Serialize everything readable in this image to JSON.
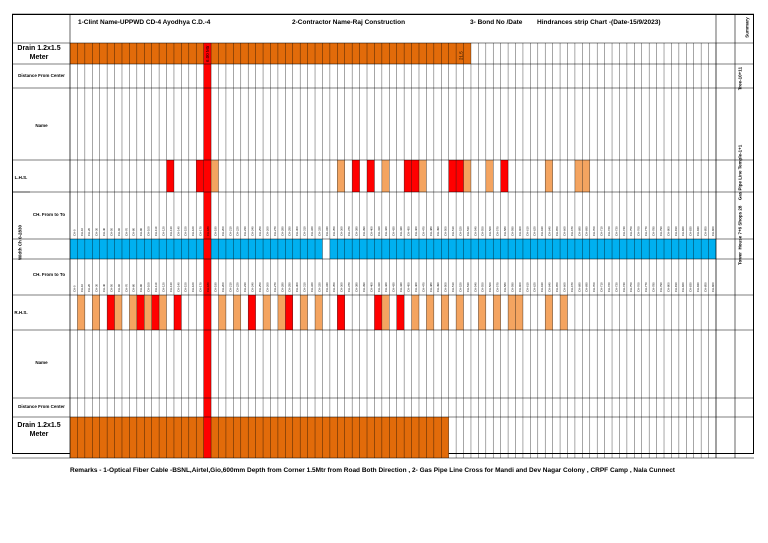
{
  "header": {
    "client": "1-Clint Name-UPPWD CD-4 Ayodhya C.D.-4",
    "contractor": "2-Contractor Name-Raj Construction",
    "bond": "3- Bond No /Date",
    "chart_title": "Hindrances strip Chart -(Date-15/9/2023)",
    "summary": "Summary"
  },
  "rows": {
    "drain_top": "Drain 1.2x1.5 Meter",
    "distance_top": "Distance From Center",
    "name_top": "Name",
    "lhs": "L.H.S.",
    "ch_top": "CH. From to To",
    "ch_bottom": "CH. From to To",
    "rhs": "R.H.S.",
    "name_bottom": "Name",
    "distance_bottom": "Distance From Center",
    "drain_bottom": "Drain 1.2x1.5 Meter",
    "vertical_left": "Width Ch 0-2830"
  },
  "summary_column": [
    "Tree-10+11",
    "Gas Pipe Line Temple-1+1",
    "House 7+6 Shops 28",
    "Tower"
  ],
  "drain_labels": [
    "6.00 Mtr",
    "21.5"
  ],
  "remarks": "Remarks - 1-Optical Fiber Cable -BSNL,Airtel,Gio,600mm Depth from Corner 1.5Mtr from Road Both Direction , 2- Gas Pipe Line Cross for Mandi and Dev Nagar Colony , CRPF Camp , Nala Cunnect",
  "colors": {
    "drain": "#E26B0A",
    "red": "#FF0000",
    "light_orange": "#F4A460",
    "blue": "#00B0F0",
    "border": "#000000"
  },
  "grid": {
    "columns": 87,
    "chainage_step": 10,
    "chainage_start": 0,
    "red_column": 18,
    "blue_gap_column": 34,
    "drain_top_end_column": 53,
    "drain_bottom_end_column": 50
  },
  "markers": {
    "lhs_red": [
      13,
      17,
      38,
      40,
      45,
      46,
      51,
      52,
      58
    ],
    "lhs_orange": [
      19,
      36,
      42,
      47,
      53,
      56,
      64,
      68,
      69
    ],
    "rhs_red": [
      5,
      9,
      11,
      14,
      24,
      29,
      36,
      41,
      44
    ],
    "rhs_orange": [
      1,
      3,
      6,
      8,
      10,
      12,
      20,
      22,
      26,
      28,
      31,
      33,
      42,
      46,
      48,
      50,
      52,
      55,
      57,
      59,
      60,
      64,
      66
    ]
  }
}
